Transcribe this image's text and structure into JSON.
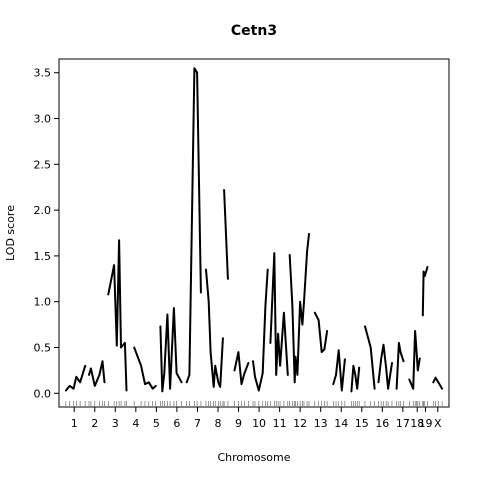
{
  "chart_data": {
    "type": "line",
    "title": "Cetn3",
    "xlabel": "Chromosome",
    "ylabel": "LOD score",
    "ylim": [
      -0.15,
      3.65
    ],
    "y_ticks": [
      "0.0",
      "0.5",
      "1.0",
      "1.5",
      "2.0",
      "2.5",
      "3.0",
      "3.5"
    ],
    "categories": [
      "1",
      "2",
      "3",
      "4",
      "5",
      "6",
      "7",
      "8",
      "9",
      "10",
      "11",
      "12",
      "13",
      "14",
      "15",
      "16",
      "17",
      "18",
      "19",
      "X"
    ],
    "chromosome_spans": [
      [
        0,
        1.0
      ],
      [
        1.0,
        2.0
      ],
      [
        2.0,
        3.0
      ],
      [
        3.0,
        4.0
      ],
      [
        4.0,
        5.0
      ],
      [
        5.0,
        6.0
      ],
      [
        6.0,
        7.0
      ],
      [
        7.0,
        8.0
      ],
      [
        8.0,
        9.0
      ],
      [
        9.0,
        10.0
      ],
      [
        10.0,
        11.0
      ],
      [
        11.0,
        12.0
      ],
      [
        12.0,
        13.0
      ],
      [
        13.0,
        14.0
      ],
      [
        14.0,
        15.0
      ],
      [
        15.0,
        16.0
      ],
      [
        16.0,
        17.0
      ],
      [
        17.0,
        17.4
      ],
      [
        17.4,
        17.8
      ],
      [
        17.8,
        18.6
      ]
    ],
    "series": [
      {
        "chromosome": "1",
        "points": [
          [
            0.05,
            0.03
          ],
          [
            0.15,
            0.08
          ],
          [
            0.25,
            0.05
          ],
          [
            0.32,
            0.18
          ],
          [
            0.42,
            0.12
          ],
          [
            0.55,
            0.3
          ]
        ]
      },
      {
        "chromosome": "1b",
        "points": [
          [
            0.65,
            0.2
          ],
          [
            0.7,
            0.27
          ],
          [
            0.8,
            0.08
          ],
          [
            0.92,
            0.2
          ],
          [
            1.0,
            0.35
          ],
          [
            1.05,
            0.12
          ]
        ]
      },
      {
        "chromosome": "2",
        "points": [
          [
            1.15,
            1.08
          ],
          [
            1.3,
            1.4
          ],
          [
            1.37,
            0.52
          ],
          [
            1.43,
            1.67
          ],
          [
            1.48,
            0.5
          ],
          [
            1.58,
            0.55
          ],
          [
            1.62,
            0.03
          ]
        ]
      },
      {
        "chromosome": "3",
        "points": [
          [
            1.82,
            0.5
          ],
          [
            2.0,
            0.3
          ],
          [
            2.1,
            0.1
          ],
          [
            2.2,
            0.12
          ],
          [
            2.3,
            0.05
          ],
          [
            2.38,
            0.08
          ]
        ]
      },
      {
        "chromosome": "4",
        "points": [
          [
            2.5,
            0.73
          ],
          [
            2.55,
            0.02
          ],
          [
            2.6,
            0.22
          ],
          [
            2.68,
            0.86
          ],
          [
            2.75,
            0.05
          ],
          [
            2.85,
            0.93
          ],
          [
            2.92,
            0.22
          ],
          [
            3.05,
            0.12
          ]
        ]
      },
      {
        "chromosome": "5",
        "points": [
          [
            3.18,
            0.12
          ],
          [
            3.25,
            0.2
          ],
          [
            3.38,
            3.55
          ],
          [
            3.45,
            3.5
          ],
          [
            3.55,
            1.1
          ]
        ]
      },
      {
        "chromosome": "6",
        "points": [
          [
            3.68,
            1.35
          ],
          [
            3.75,
            1.0
          ],
          [
            3.8,
            0.45
          ],
          [
            3.88,
            0.07
          ],
          [
            3.92,
            0.3
          ],
          [
            4.0,
            0.12
          ],
          [
            4.05,
            0.07
          ],
          [
            4.12,
            0.6
          ]
        ]
      },
      {
        "chromosome": "7",
        "points": [
          [
            4.15,
            2.22
          ],
          [
            4.25,
            1.25
          ]
        ]
      },
      {
        "chromosome": "8",
        "points": [
          [
            4.42,
            0.25
          ],
          [
            4.52,
            0.45
          ],
          [
            4.6,
            0.1
          ],
          [
            4.68,
            0.22
          ],
          [
            4.78,
            0.33
          ]
        ]
      },
      {
        "chromosome": "9",
        "points": [
          [
            4.9,
            0.35
          ],
          [
            4.95,
            0.18
          ],
          [
            5.05,
            0.03
          ],
          [
            5.15,
            0.22
          ],
          [
            5.22,
            0.95
          ],
          [
            5.28,
            1.35
          ]
        ]
      },
      {
        "chromosome": "10",
        "points": [
          [
            5.35,
            0.55
          ],
          [
            5.45,
            1.53
          ],
          [
            5.5,
            0.2
          ],
          [
            5.55,
            0.65
          ],
          [
            5.6,
            0.3
          ],
          [
            5.7,
            0.88
          ],
          [
            5.8,
            0.2
          ]
        ]
      },
      {
        "chromosome": "11",
        "points": [
          [
            5.85,
            1.51
          ],
          [
            5.92,
            0.95
          ],
          [
            5.98,
            0.12
          ],
          [
            6.0,
            0.4
          ],
          [
            6.05,
            0.2
          ],
          [
            6.12,
            1.0
          ],
          [
            6.18,
            0.75
          ],
          [
            6.22,
            1.0
          ],
          [
            6.3,
            1.55
          ],
          [
            6.35,
            1.74
          ]
        ]
      },
      {
        "chromosome": "12",
        "points": [
          [
            6.5,
            0.88
          ],
          [
            6.6,
            0.8
          ],
          [
            6.68,
            0.45
          ],
          [
            6.75,
            0.48
          ],
          [
            6.82,
            0.68
          ]
        ]
      },
      {
        "chromosome": "13",
        "points": [
          [
            6.98,
            0.1
          ],
          [
            7.05,
            0.2
          ],
          [
            7.12,
            0.47
          ],
          [
            7.2,
            0.03
          ],
          [
            7.28,
            0.37
          ]
        ]
      },
      {
        "chromosome": "14",
        "points": [
          [
            7.45,
            0.02
          ],
          [
            7.5,
            0.3
          ],
          [
            7.55,
            0.2
          ],
          [
            7.6,
            0.05
          ],
          [
            7.65,
            0.28
          ]
        ]
      },
      {
        "chromosome": "15",
        "points": [
          [
            7.8,
            0.73
          ],
          [
            7.95,
            0.5
          ],
          [
            8.05,
            0.05
          ]
        ]
      },
      {
        "chromosome": "16",
        "points": [
          [
            8.15,
            0.12
          ],
          [
            8.22,
            0.38
          ],
          [
            8.28,
            0.53
          ],
          [
            8.35,
            0.27
          ],
          [
            8.4,
            0.05
          ],
          [
            8.5,
            0.33
          ]
        ]
      },
      {
        "chromosome": "17",
        "points": [
          [
            8.62,
            0.05
          ],
          [
            8.68,
            0.55
          ],
          [
            8.72,
            0.45
          ],
          [
            8.8,
            0.35
          ]
        ]
      },
      {
        "chromosome": "18",
        "points": [
          [
            8.95,
            0.15
          ],
          [
            9.05,
            0.05
          ],
          [
            9.1,
            0.68
          ],
          [
            9.13,
            0.5
          ],
          [
            9.17,
            0.25
          ],
          [
            9.22,
            0.38
          ]
        ]
      },
      {
        "chromosome": "19",
        "points": [
          [
            9.3,
            0.85
          ],
          [
            9.32,
            1.33
          ],
          [
            9.35,
            1.28
          ],
          [
            9.42,
            1.38
          ]
        ]
      },
      {
        "chromosome": "X",
        "points": [
          [
            9.57,
            0.12
          ],
          [
            9.63,
            0.17
          ],
          [
            9.7,
            0.12
          ],
          [
            9.8,
            0.05
          ]
        ]
      }
    ],
    "grid": false,
    "legend": "none"
  }
}
